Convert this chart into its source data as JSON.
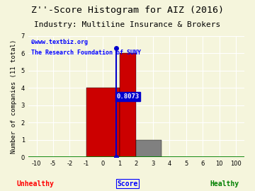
{
  "title": "Z''-Score Histogram for AIZ (2016)",
  "subtitle": "Industry: Multiline Insurance & Brokers",
  "ylabel": "Number of companies (11 total)",
  "xlabel_center": "Score",
  "label_unhealthy": "Unhealthy",
  "label_healthy": "Healthy",
  "watermark1": "©www.textbiz.org",
  "watermark2": "The Research Foundation of SUNY",
  "xtick_values": [
    -10,
    -5,
    -2,
    -1,
    0,
    1,
    2,
    3,
    4,
    5,
    6,
    10,
    100
  ],
  "xtick_labels": [
    "-10",
    "-5",
    "-2",
    "-1",
    "0",
    "1",
    "2",
    "3",
    "4",
    "5",
    "6",
    "10",
    "100"
  ],
  "bars": [
    {
      "x_start_val": -1,
      "x_end_val": 1,
      "height": 4,
      "color": "#cc0000"
    },
    {
      "x_start_val": 1,
      "x_end_val": 2,
      "height": 6,
      "color": "#cc0000"
    },
    {
      "x_start_val": 2,
      "x_end_val": 3.5,
      "height": 1,
      "color": "#808080"
    }
  ],
  "marker_val": 0.8073,
  "marker_label": "0.8073",
  "marker_color": "#0000cc",
  "ylim": [
    0,
    7
  ],
  "yticks": [
    0,
    1,
    2,
    3,
    4,
    5,
    6,
    7
  ],
  "background_color": "#f5f5dc",
  "grid_color": "#ffffff",
  "title_fontsize": 9.5,
  "subtitle_fontsize": 8,
  "ylabel_fontsize": 6.5,
  "tick_fontsize": 6,
  "watermark_fontsize": 6,
  "annotation_fontsize": 6.5
}
